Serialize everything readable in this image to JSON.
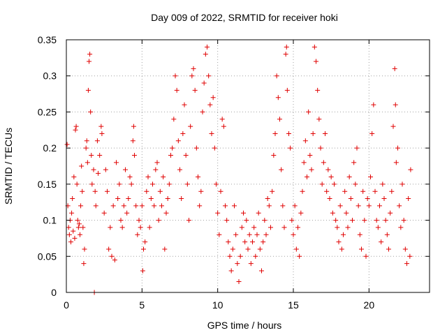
{
  "chart_data": {
    "type": "scatter",
    "title": "Day 009 of 2022, SRMTID for receiver hoki",
    "xlabel": "GPS time / hours",
    "ylabel": "SRMTID / TECUs",
    "xlim": [
      0,
      24
    ],
    "ylim": [
      0,
      0.35
    ],
    "xticks": [
      0,
      5,
      10,
      15,
      20
    ],
    "xtick_labels": [
      "0",
      "5",
      "10",
      "15",
      "20"
    ],
    "yticks": [
      0,
      0.05,
      0.1,
      0.15,
      0.2,
      0.25,
      0.3,
      0.35
    ],
    "ytick_labels": [
      "0",
      "0.05",
      "0.1",
      "0.15",
      "0.2",
      "0.25",
      "0.3",
      "0.35"
    ],
    "grid": true,
    "marker": "+",
    "color": "#e00000",
    "series": [
      {
        "name": "SRMTID",
        "points": [
          [
            0.05,
            0.205
          ],
          [
            0.1,
            0.12
          ],
          [
            0.15,
            0.09
          ],
          [
            0.2,
            0.08
          ],
          [
            0.25,
            0.1
          ],
          [
            0.3,
            0.07
          ],
          [
            0.35,
            0.11
          ],
          [
            0.4,
            0.13
          ],
          [
            0.45,
            0.085
          ],
          [
            0.5,
            0.16
          ],
          [
            0.55,
            0.075
          ],
          [
            0.6,
            0.225
          ],
          [
            0.65,
            0.23
          ],
          [
            0.7,
            0.15
          ],
          [
            0.75,
            0.1
          ],
          [
            0.8,
            0.09
          ],
          [
            0.85,
            0.095
          ],
          [
            0.9,
            0.08
          ],
          [
            0.95,
            0.12
          ],
          [
            1.0,
            0.175
          ],
          [
            1.05,
            0.14
          ],
          [
            1.1,
            0.09
          ],
          [
            1.15,
            0.04
          ],
          [
            1.2,
            0.06
          ],
          [
            1.3,
            0.2
          ],
          [
            1.35,
            0.21
          ],
          [
            1.4,
            0.18
          ],
          [
            1.45,
            0.28
          ],
          [
            1.5,
            0.32
          ],
          [
            1.55,
            0.33
          ],
          [
            1.6,
            0.25
          ],
          [
            1.65,
            0.19
          ],
          [
            1.7,
            0.15
          ],
          [
            1.8,
            0.17
          ],
          [
            1.85,
            0.0
          ],
          [
            1.9,
            0.14
          ],
          [
            1.95,
            0.12
          ],
          [
            2.05,
            0.21
          ],
          [
            2.1,
            0.165
          ],
          [
            2.2,
            0.19
          ],
          [
            2.3,
            0.23
          ],
          [
            2.35,
            0.22
          ],
          [
            2.5,
            0.11
          ],
          [
            2.6,
            0.17
          ],
          [
            2.7,
            0.14
          ],
          [
            2.8,
            0.06
          ],
          [
            2.9,
            0.09
          ],
          [
            3.0,
            0.05
          ],
          [
            3.1,
            0.12
          ],
          [
            3.2,
            0.045
          ],
          [
            3.3,
            0.18
          ],
          [
            3.4,
            0.13
          ],
          [
            3.5,
            0.15
          ],
          [
            3.6,
            0.1
          ],
          [
            3.7,
            0.09
          ],
          [
            3.8,
            0.12
          ],
          [
            3.9,
            0.17
          ],
          [
            4.0,
            0.11
          ],
          [
            4.1,
            0.13
          ],
          [
            4.2,
            0.16
          ],
          [
            4.3,
            0.15
          ],
          [
            4.4,
            0.21
          ],
          [
            4.45,
            0.23
          ],
          [
            4.5,
            0.19
          ],
          [
            4.6,
            0.12
          ],
          [
            4.7,
            0.08
          ],
          [
            4.8,
            0.1
          ],
          [
            4.9,
            0.09
          ],
          [
            5.0,
            0.12
          ],
          [
            5.05,
            0.03
          ],
          [
            5.1,
            0.06
          ],
          [
            5.2,
            0.07
          ],
          [
            5.3,
            0.14
          ],
          [
            5.4,
            0.16
          ],
          [
            5.5,
            0.09
          ],
          [
            5.6,
            0.13
          ],
          [
            5.7,
            0.15
          ],
          [
            5.8,
            0.12
          ],
          [
            5.9,
            0.17
          ],
          [
            6.0,
            0.18
          ],
          [
            6.1,
            0.1
          ],
          [
            6.2,
            0.14
          ],
          [
            6.3,
            0.12
          ],
          [
            6.4,
            0.16
          ],
          [
            6.5,
            0.06
          ],
          [
            6.6,
            0.11
          ],
          [
            6.7,
            0.13
          ],
          [
            6.8,
            0.15
          ],
          [
            6.9,
            0.19
          ],
          [
            7.0,
            0.2
          ],
          [
            7.1,
            0.24
          ],
          [
            7.2,
            0.3
          ],
          [
            7.3,
            0.28
          ],
          [
            7.4,
            0.21
          ],
          [
            7.5,
            0.17
          ],
          [
            7.6,
            0.13
          ],
          [
            7.7,
            0.22
          ],
          [
            7.8,
            0.26
          ],
          [
            7.9,
            0.19
          ],
          [
            8.0,
            0.15
          ],
          [
            8.1,
            0.1
          ],
          [
            8.2,
            0.23
          ],
          [
            8.3,
            0.3
          ],
          [
            8.4,
            0.31
          ],
          [
            8.5,
            0.28
          ],
          [
            8.6,
            0.2
          ],
          [
            8.7,
            0.16
          ],
          [
            8.8,
            0.12
          ],
          [
            8.9,
            0.14
          ],
          [
            9.0,
            0.25
          ],
          [
            9.1,
            0.29
          ],
          [
            9.2,
            0.33
          ],
          [
            9.3,
            0.34
          ],
          [
            9.4,
            0.3
          ],
          [
            9.5,
            0.26
          ],
          [
            9.6,
            0.22
          ],
          [
            9.7,
            0.27
          ],
          [
            9.8,
            0.2
          ],
          [
            9.9,
            0.15
          ],
          [
            10.0,
            0.11
          ],
          [
            10.1,
            0.08
          ],
          [
            10.2,
            0.14
          ],
          [
            10.3,
            0.24
          ],
          [
            10.4,
            0.23
          ],
          [
            10.5,
            0.12
          ],
          [
            10.6,
            0.1
          ],
          [
            10.7,
            0.07
          ],
          [
            10.8,
            0.05
          ],
          [
            10.9,
            0.03
          ],
          [
            11.0,
            0.06
          ],
          [
            11.1,
            0.12
          ],
          [
            11.2,
            0.08
          ],
          [
            11.3,
            0.04
          ],
          [
            11.4,
            0.015
          ],
          [
            11.5,
            0.05
          ],
          [
            11.6,
            0.09
          ],
          [
            11.7,
            0.11
          ],
          [
            11.8,
            0.07
          ],
          [
            11.9,
            0.1
          ],
          [
            12.0,
            0.06
          ],
          [
            12.1,
            0.08
          ],
          [
            12.2,
            0.04
          ],
          [
            12.3,
            0.07
          ],
          [
            12.4,
            0.09
          ],
          [
            12.5,
            0.05
          ],
          [
            12.6,
            0.08
          ],
          [
            12.7,
            0.11
          ],
          [
            12.8,
            0.06
          ],
          [
            12.9,
            0.03
          ],
          [
            13.0,
            0.07
          ],
          [
            13.1,
            0.1
          ],
          [
            13.2,
            0.08
          ],
          [
            13.3,
            0.13
          ],
          [
            13.4,
            0.12
          ],
          [
            13.5,
            0.09
          ],
          [
            13.6,
            0.14
          ],
          [
            13.7,
            0.19
          ],
          [
            13.8,
            0.22
          ],
          [
            13.9,
            0.3
          ],
          [
            14.0,
            0.27
          ],
          [
            14.1,
            0.24
          ],
          [
            14.2,
            0.17
          ],
          [
            14.3,
            0.12
          ],
          [
            14.4,
            0.09
          ],
          [
            14.5,
            0.33
          ],
          [
            14.55,
            0.34
          ],
          [
            14.6,
            0.28
          ],
          [
            14.7,
            0.22
          ],
          [
            14.8,
            0.2
          ],
          [
            14.9,
            0.1
          ],
          [
            15.0,
            0.08
          ],
          [
            15.1,
            0.12
          ],
          [
            15.2,
            0.06
          ],
          [
            15.3,
            0.09
          ],
          [
            15.4,
            0.05
          ],
          [
            15.5,
            0.11
          ],
          [
            15.6,
            0.14
          ],
          [
            15.7,
            0.18
          ],
          [
            15.8,
            0.21
          ],
          [
            15.9,
            0.16
          ],
          [
            16.0,
            0.25
          ],
          [
            16.1,
            0.19
          ],
          [
            16.2,
            0.17
          ],
          [
            16.3,
            0.22
          ],
          [
            16.4,
            0.34
          ],
          [
            16.5,
            0.32
          ],
          [
            16.6,
            0.28
          ],
          [
            16.7,
            0.24
          ],
          [
            16.8,
            0.2
          ],
          [
            16.9,
            0.15
          ],
          [
            17.0,
            0.18
          ],
          [
            17.1,
            0.22
          ],
          [
            17.2,
            0.14
          ],
          [
            17.3,
            0.17
          ],
          [
            17.4,
            0.13
          ],
          [
            17.5,
            0.16
          ],
          [
            17.6,
            0.11
          ],
          [
            17.7,
            0.15
          ],
          [
            17.8,
            0.1
          ],
          [
            17.9,
            0.09
          ],
          [
            18.0,
            0.07
          ],
          [
            18.1,
            0.12
          ],
          [
            18.2,
            0.06
          ],
          [
            18.3,
            0.08
          ],
          [
            18.4,
            0.14
          ],
          [
            18.5,
            0.11
          ],
          [
            18.6,
            0.09
          ],
          [
            18.7,
            0.16
          ],
          [
            18.8,
            0.13
          ],
          [
            18.9,
            0.1
          ],
          [
            19.0,
            0.18
          ],
          [
            19.1,
            0.15
          ],
          [
            19.2,
            0.2
          ],
          [
            19.3,
            0.12
          ],
          [
            19.4,
            0.08
          ],
          [
            19.5,
            0.06
          ],
          [
            19.6,
            0.14
          ],
          [
            19.7,
            0.1
          ],
          [
            19.8,
            0.05
          ],
          [
            19.9,
            0.13
          ],
          [
            20.0,
            0.12
          ],
          [
            20.1,
            0.16
          ],
          [
            20.2,
            0.22
          ],
          [
            20.3,
            0.26
          ],
          [
            20.4,
            0.14
          ],
          [
            20.5,
            0.1
          ],
          [
            20.6,
            0.09
          ],
          [
            20.7,
            0.12
          ],
          [
            20.8,
            0.07
          ],
          [
            20.9,
            0.15
          ],
          [
            21.0,
            0.13
          ],
          [
            21.1,
            0.1
          ],
          [
            21.2,
            0.08
          ],
          [
            21.3,
            0.06
          ],
          [
            21.4,
            0.11
          ],
          [
            21.5,
            0.14
          ],
          [
            21.6,
            0.23
          ],
          [
            21.7,
            0.31
          ],
          [
            21.75,
            0.26
          ],
          [
            21.8,
            0.18
          ],
          [
            21.9,
            0.2
          ],
          [
            22.0,
            0.12
          ],
          [
            22.1,
            0.09
          ],
          [
            22.2,
            0.15
          ],
          [
            22.3,
            0.1
          ],
          [
            22.4,
            0.06
          ],
          [
            22.5,
            0.04
          ],
          [
            22.6,
            0.13
          ],
          [
            22.7,
            0.05
          ],
          [
            22.75,
            0.17
          ]
        ]
      }
    ]
  }
}
